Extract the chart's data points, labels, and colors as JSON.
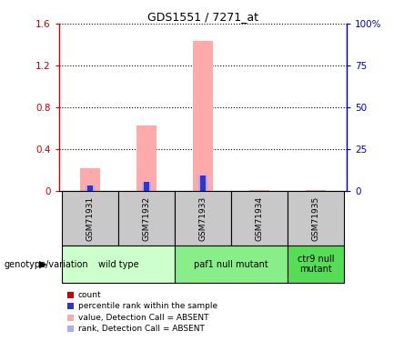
{
  "title": "GDS1551 / 7271_at",
  "samples": [
    "GSM71931",
    "GSM71932",
    "GSM71933",
    "GSM71934",
    "GSM71935"
  ],
  "value_absent": [
    0.22,
    0.63,
    1.44,
    0.005,
    0.005
  ],
  "rank_absent": [
    0.055,
    0.09,
    0.145,
    0.003,
    0.003
  ],
  "percentile_values": [
    0.055,
    0.09,
    0.145,
    0.0,
    0.0
  ],
  "ylim_left": [
    0,
    1.6
  ],
  "ylim_right": [
    0,
    100
  ],
  "yticks_left": [
    0,
    0.4,
    0.8,
    1.2,
    1.6
  ],
  "yticks_right": [
    0,
    25,
    50,
    75,
    100
  ],
  "ytick_labels_right": [
    "0",
    "25",
    "50",
    "75",
    "100%"
  ],
  "ytick_labels_left": [
    "0",
    "0.4",
    "0.8",
    "1.2",
    "1.6"
  ],
  "color_value_absent": "#ffaaaa",
  "color_rank_absent": "#aaaaff",
  "color_count": "#cc0000",
  "color_percentile": "#3333cc",
  "groups": [
    {
      "label": "wild type",
      "samples": [
        0,
        1
      ],
      "color": "#ccffcc"
    },
    {
      "label": "paf1 null mutant",
      "samples": [
        2,
        3
      ],
      "color": "#88ee88"
    },
    {
      "label": "ctr9 null\nmutant",
      "samples": [
        4
      ],
      "color": "#55dd55"
    }
  ],
  "legend_items": [
    {
      "color": "#cc0000",
      "label": "count"
    },
    {
      "color": "#3333cc",
      "label": "percentile rank within the sample"
    },
    {
      "color": "#ffaaaa",
      "label": "value, Detection Call = ABSENT"
    },
    {
      "color": "#aaaaff",
      "label": "rank, Detection Call = ABSENT"
    }
  ],
  "genotype_label": "genotype/variation",
  "bar_width": 0.35,
  "sample_bg_color": "#c8c8c8",
  "left_axis_color": "#cc0000",
  "right_axis_color": "#0000cc"
}
